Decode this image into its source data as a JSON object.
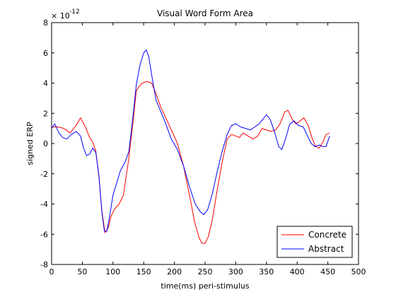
{
  "chart_data": {
    "type": "line",
    "title": "Visual Word Form Area",
    "xlabel": "time(ms) peri-stimulus",
    "ylabel": "signed ERP",
    "exponent_base": "× 10",
    "exponent_power": "-12",
    "xlim": [
      0,
      500
    ],
    "ylim": [
      -8,
      8
    ],
    "x_ticks": [
      0,
      50,
      100,
      150,
      200,
      250,
      300,
      350,
      400,
      450,
      500
    ],
    "y_ticks": [
      -8,
      -6,
      -4,
      -2,
      0,
      2,
      4,
      6,
      8
    ],
    "legend_position": "bottom-right",
    "grid": false,
    "series": [
      {
        "name": "Concrete",
        "color": "#ff0000",
        "points": [
          [
            0,
            1.1
          ],
          [
            10,
            1.1
          ],
          [
            20,
            1.0
          ],
          [
            30,
            0.7
          ],
          [
            40,
            1.2
          ],
          [
            47,
            1.7
          ],
          [
            55,
            1.1
          ],
          [
            62,
            0.4
          ],
          [
            67,
            0.1
          ],
          [
            72,
            -0.5
          ],
          [
            77,
            -2.2
          ],
          [
            82,
            -4.5
          ],
          [
            87,
            -5.9
          ],
          [
            92,
            -5.6
          ],
          [
            97,
            -4.8
          ],
          [
            103,
            -4.3
          ],
          [
            110,
            -4.0
          ],
          [
            117,
            -3.4
          ],
          [
            125,
            -1.2
          ],
          [
            132,
            1.2
          ],
          [
            138,
            3.5
          ],
          [
            145,
            3.9
          ],
          [
            150,
            4.05
          ],
          [
            156,
            4.1
          ],
          [
            163,
            4.0
          ],
          [
            170,
            3.3
          ],
          [
            178,
            2.4
          ],
          [
            186,
            1.7
          ],
          [
            195,
            0.9
          ],
          [
            205,
            0.0
          ],
          [
            215,
            -1.5
          ],
          [
            225,
            -3.5
          ],
          [
            233,
            -5.2
          ],
          [
            240,
            -6.2
          ],
          [
            245,
            -6.6
          ],
          [
            250,
            -6.6
          ],
          [
            255,
            -6.2
          ],
          [
            262,
            -5.0
          ],
          [
            270,
            -3.0
          ],
          [
            278,
            -1.2
          ],
          [
            286,
            0.3
          ],
          [
            293,
            0.6
          ],
          [
            300,
            0.5
          ],
          [
            306,
            0.4
          ],
          [
            312,
            0.7
          ],
          [
            320,
            0.5
          ],
          [
            328,
            0.3
          ],
          [
            336,
            0.5
          ],
          [
            343,
            1.0
          ],
          [
            350,
            0.9
          ],
          [
            357,
            0.8
          ],
          [
            365,
            0.9
          ],
          [
            372,
            1.3
          ],
          [
            380,
            2.1
          ],
          [
            385,
            2.2
          ],
          [
            392,
            1.6
          ],
          [
            398,
            1.3
          ],
          [
            405,
            1.5
          ],
          [
            411,
            1.7
          ],
          [
            418,
            1.2
          ],
          [
            424,
            0.4
          ],
          [
            430,
            -0.2
          ],
          [
            436,
            -0.3
          ],
          [
            442,
            0.1
          ],
          [
            447,
            0.6
          ],
          [
            453,
            0.7
          ]
        ]
      },
      {
        "name": "Abstract",
        "color": "#0000ff",
        "points": [
          [
            0,
            1.0
          ],
          [
            5,
            1.3
          ],
          [
            12,
            0.7
          ],
          [
            18,
            0.4
          ],
          [
            25,
            0.3
          ],
          [
            32,
            0.6
          ],
          [
            40,
            0.8
          ],
          [
            47,
            0.5
          ],
          [
            52,
            -0.3
          ],
          [
            57,
            -0.8
          ],
          [
            62,
            -0.7
          ],
          [
            67,
            -0.3
          ],
          [
            72,
            -0.6
          ],
          [
            77,
            -2.1
          ],
          [
            82,
            -4.6
          ],
          [
            86,
            -5.8
          ],
          [
            90,
            -5.8
          ],
          [
            95,
            -4.7
          ],
          [
            100,
            -3.4
          ],
          [
            106,
            -2.6
          ],
          [
            112,
            -1.8
          ],
          [
            120,
            -1.2
          ],
          [
            126,
            -0.5
          ],
          [
            132,
            1.6
          ],
          [
            138,
            3.9
          ],
          [
            144,
            5.2
          ],
          [
            150,
            6.0
          ],
          [
            154,
            6.2
          ],
          [
            158,
            5.8
          ],
          [
            164,
            4.3
          ],
          [
            170,
            2.9
          ],
          [
            178,
            2.1
          ],
          [
            186,
            1.3
          ],
          [
            195,
            0.3
          ],
          [
            205,
            -0.4
          ],
          [
            215,
            -1.5
          ],
          [
            225,
            -2.9
          ],
          [
            234,
            -4.0
          ],
          [
            242,
            -4.5
          ],
          [
            248,
            -4.7
          ],
          [
            254,
            -4.4
          ],
          [
            262,
            -3.3
          ],
          [
            270,
            -1.8
          ],
          [
            278,
            -0.5
          ],
          [
            286,
            0.6
          ],
          [
            293,
            1.2
          ],
          [
            300,
            1.3
          ],
          [
            308,
            1.1
          ],
          [
            316,
            1.0
          ],
          [
            324,
            0.9
          ],
          [
            331,
            1.1
          ],
          [
            338,
            1.3
          ],
          [
            344,
            1.6
          ],
          [
            350,
            1.9
          ],
          [
            356,
            1.6
          ],
          [
            363,
            0.8
          ],
          [
            370,
            -0.2
          ],
          [
            375,
            -0.4
          ],
          [
            381,
            0.3
          ],
          [
            388,
            1.3
          ],
          [
            395,
            1.5
          ],
          [
            402,
            1.2
          ],
          [
            410,
            1.1
          ],
          [
            417,
            0.5
          ],
          [
            423,
            0.0
          ],
          [
            429,
            -0.2
          ],
          [
            436,
            -0.1
          ],
          [
            442,
            -0.2
          ],
          [
            447,
            -0.2
          ],
          [
            453,
            0.5
          ]
        ]
      }
    ]
  }
}
